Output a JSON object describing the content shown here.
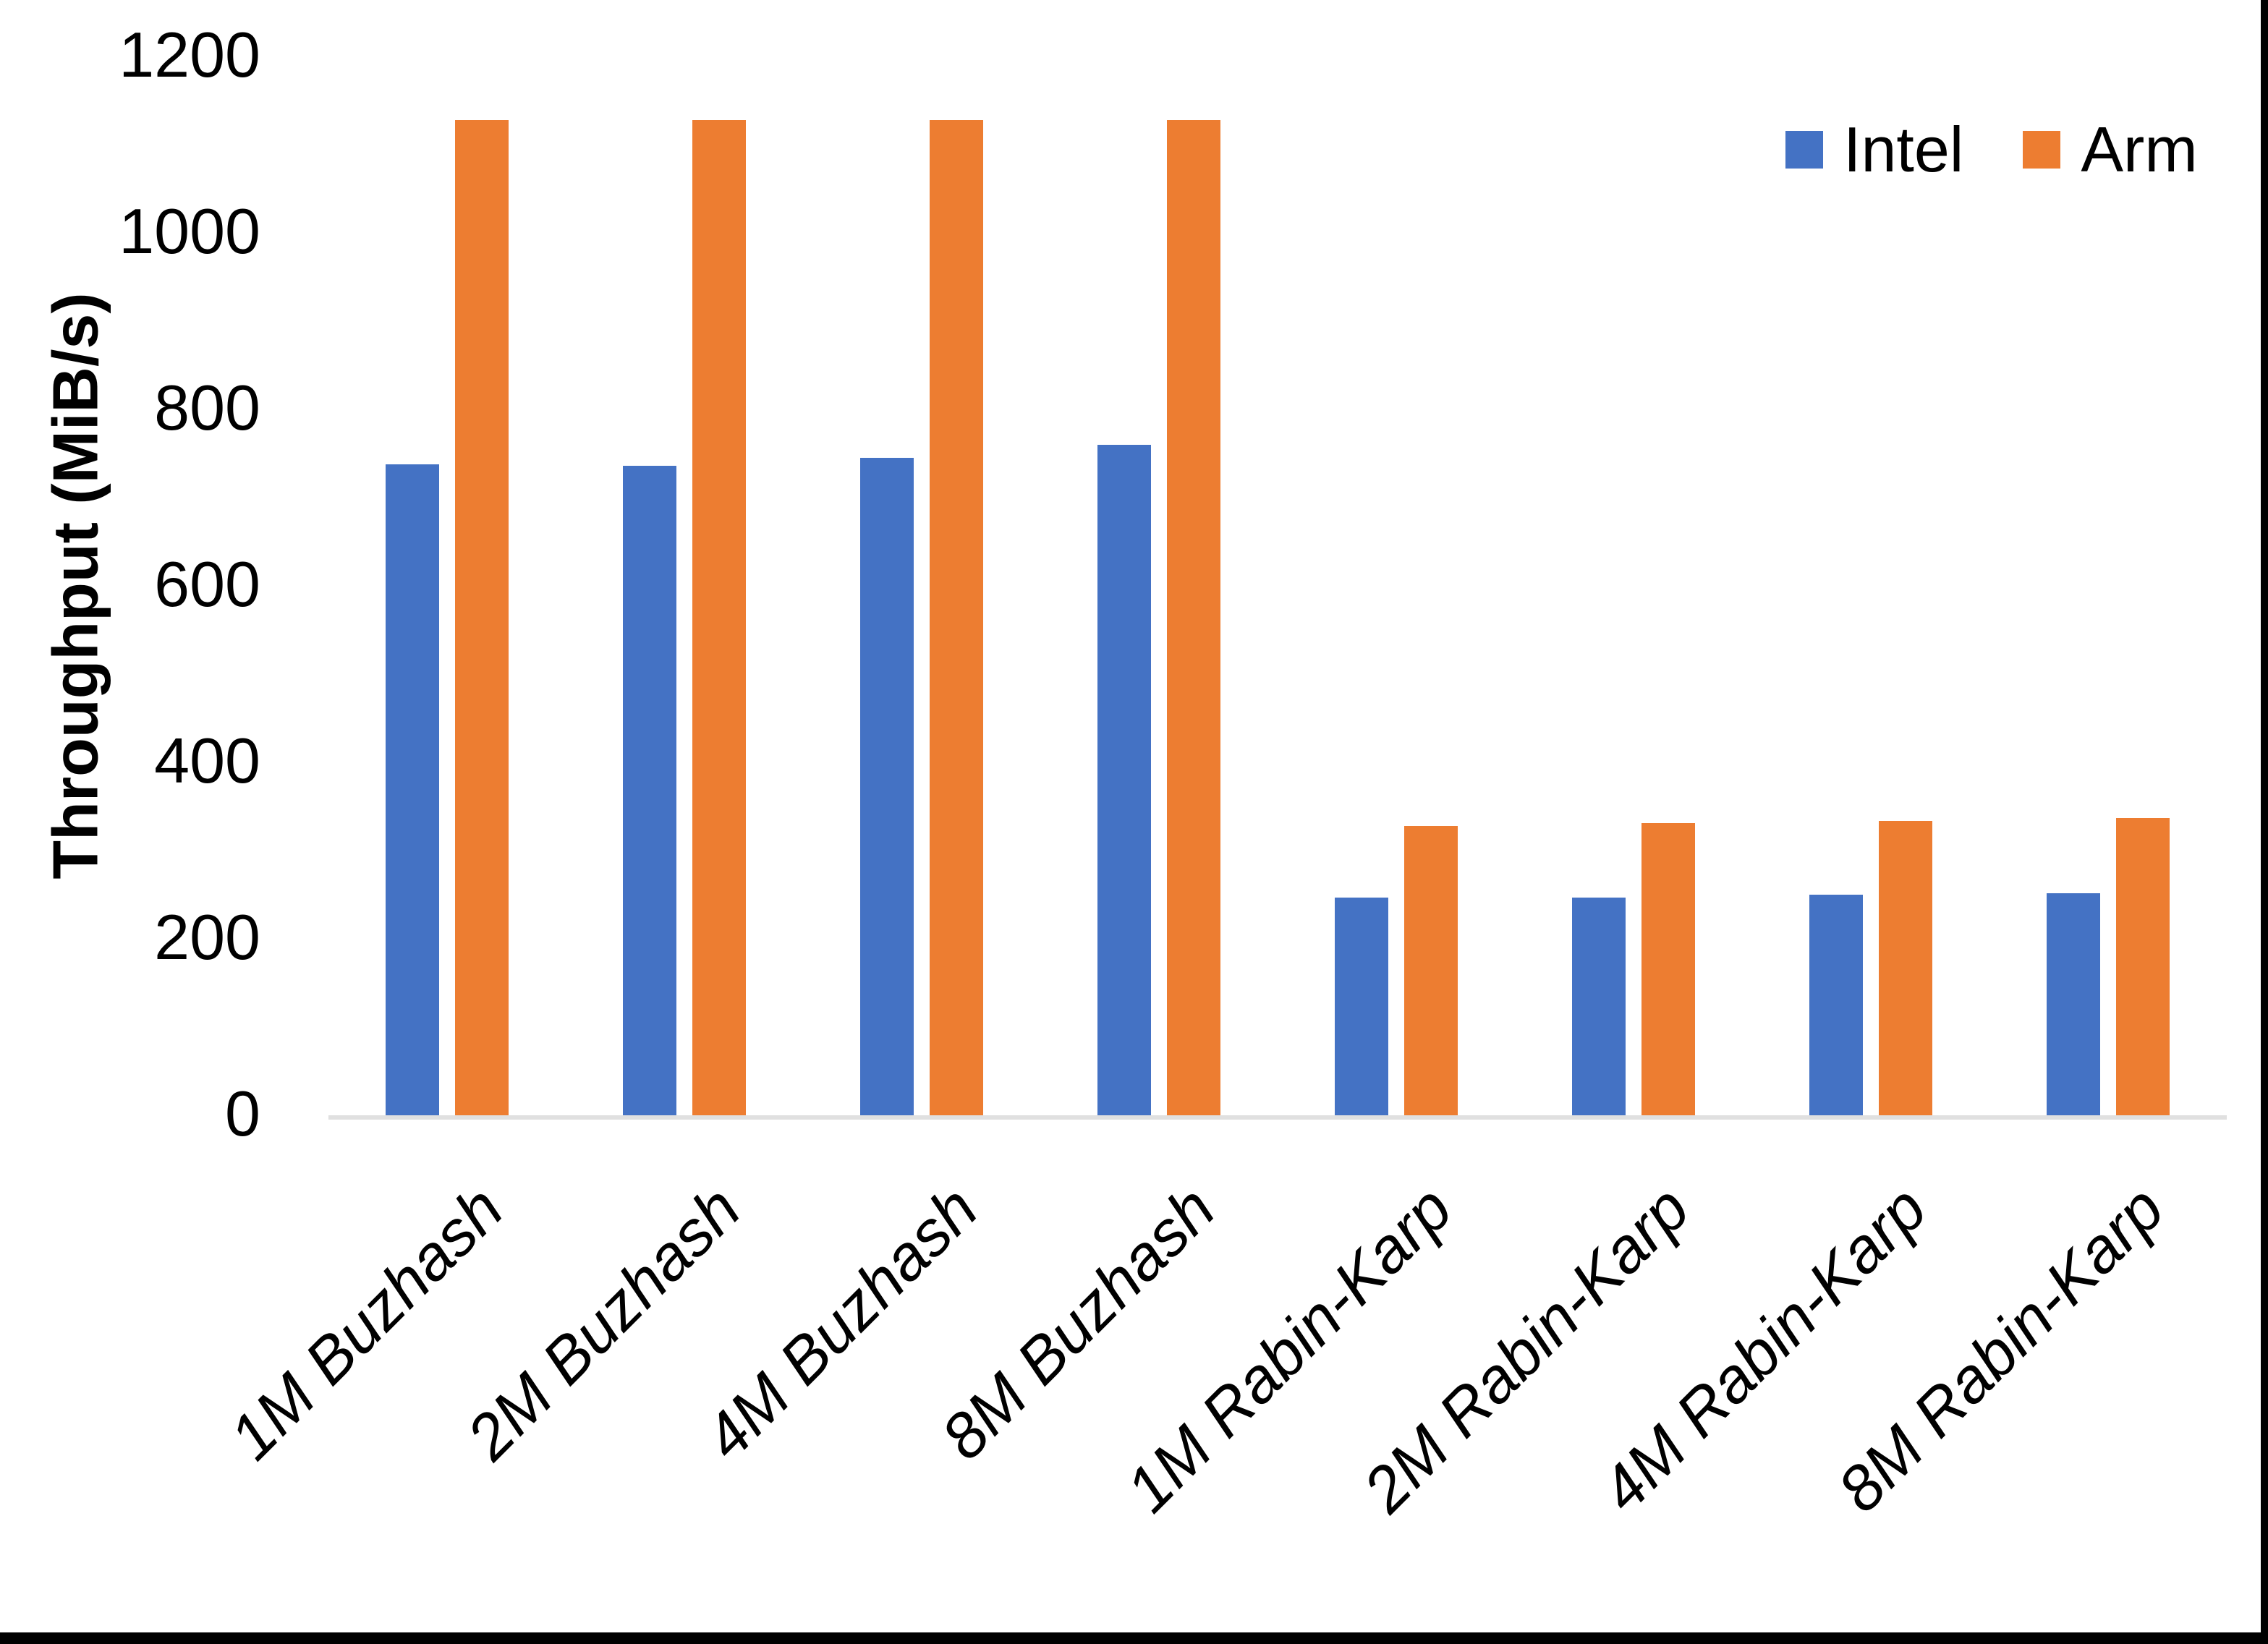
{
  "chart_data": {
    "type": "bar",
    "title": "",
    "xlabel": "",
    "ylabel": "Throughput (MiB/s)",
    "ylim": [
      0,
      1200
    ],
    "yticks": [
      0,
      200,
      400,
      600,
      800,
      1000,
      1200
    ],
    "grid": false,
    "legend_position": "top-right",
    "categories": [
      "1M Buzhash",
      "2M Buzhash",
      "4M Buzhash",
      "8M Buzhash",
      "1M Rabin-Karp",
      "2M Rabin-Karp",
      "4M Rabin-Karp",
      "8M Rabin-Karp"
    ],
    "series": [
      {
        "name": "Intel",
        "color": "#4472C4",
        "values": [
          738,
          736,
          745,
          760,
          247,
          247,
          250,
          252
        ]
      },
      {
        "name": "Arm",
        "color": "#ED7D31",
        "values": [
          1128,
          1128,
          1128,
          1128,
          328,
          331,
          334,
          337
        ]
      }
    ],
    "axis_line_color": "#e0e0e0"
  },
  "frame": {
    "edge_color": "#000000"
  }
}
